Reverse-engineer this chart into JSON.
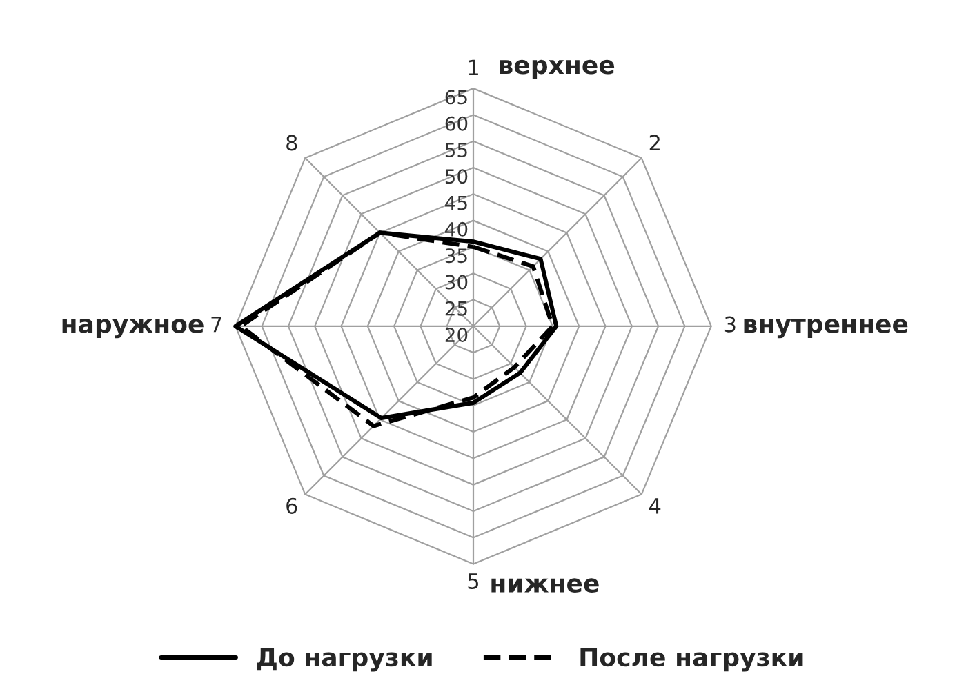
{
  "chart_data": {
    "type": "radar",
    "categories": [
      "1",
      "2",
      "3",
      "4",
      "5",
      "6",
      "7",
      "8"
    ],
    "ylim": [
      20,
      65
    ],
    "yticks": [
      20,
      25,
      30,
      35,
      40,
      45,
      50,
      55,
      60,
      65
    ],
    "series": [
      {
        "name": "До нагрузки",
        "color": "#000000",
        "line_style": "solid",
        "values": [
          36,
          38,
          35.7,
          32.5,
          34.5,
          44.6,
          65,
          45
        ]
      },
      {
        "name": "После нагрузки",
        "color": "#000000",
        "line_style": "dashed",
        "values": [
          35,
          36,
          35,
          31,
          33.5,
          46.7,
          64,
          45
        ]
      }
    ],
    "annotations": [
      "верхнее",
      "внутреннее",
      "нижнее",
      "наружное"
    ],
    "legend": "bottom",
    "grid": true
  }
}
